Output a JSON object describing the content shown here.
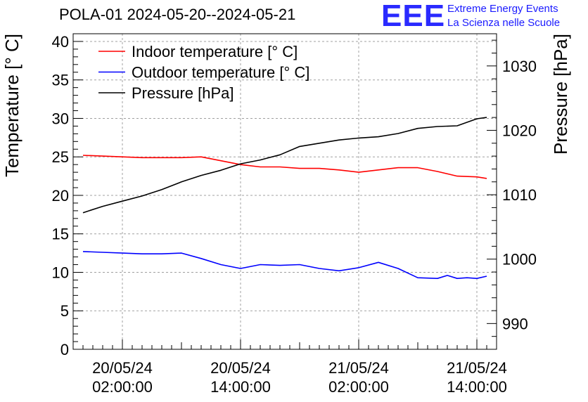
{
  "header": {
    "title": "POLA-01 2024-05-20--2024-05-21",
    "logo_letters": "EEE",
    "logo_line1": "Extreme Energy Events",
    "logo_line2": "La Scienza nelle Scuole"
  },
  "colors": {
    "indoor": "#ff0000",
    "outdoor": "#0000ff",
    "pressure": "#000000",
    "grid": "#a0a0a0"
  },
  "chart_data": {
    "type": "line",
    "ylabel": "Temperature [° C]",
    "y2label": "Pressure [hPa]",
    "ylim": [
      0,
      41
    ],
    "y2lim": [
      986,
      1035
    ],
    "y_ticks": [
      "0",
      "5",
      "10",
      "15",
      "20",
      "25",
      "30",
      "35",
      "40"
    ],
    "y2_ticks": [
      "990",
      "1000",
      "1010",
      "1020",
      "1030"
    ],
    "xlim": [
      "2024-05-19 21:00",
      "2024-05-21 16:00"
    ],
    "x_ticks": [
      {
        "date": "20/05/24",
        "time": "02:00:00",
        "at": "2024-05-20 02:00"
      },
      {
        "date": "20/05/24",
        "time": "14:00:00",
        "at": "2024-05-20 14:00"
      },
      {
        "date": "21/05/24",
        "time": "02:00:00",
        "at": "2024-05-21 02:00"
      },
      {
        "date": "21/05/24",
        "time": "14:00:00",
        "at": "2024-05-21 14:00"
      }
    ],
    "grid": true,
    "legend_position": "top-left",
    "series": [
      {
        "name": "Indoor temperature [° C]",
        "axis": "left",
        "color": "#ff0000",
        "x": [
          "2024-05-19 22:00",
          "2024-05-20 00:00",
          "2024-05-20 02:00",
          "2024-05-20 04:00",
          "2024-05-20 06:00",
          "2024-05-20 08:00",
          "2024-05-20 10:00",
          "2024-05-20 12:00",
          "2024-05-20 14:00",
          "2024-05-20 16:00",
          "2024-05-20 18:00",
          "2024-05-20 20:00",
          "2024-05-20 22:00",
          "2024-05-21 00:00",
          "2024-05-21 02:00",
          "2024-05-21 04:00",
          "2024-05-21 06:00",
          "2024-05-21 08:00",
          "2024-05-21 10:00",
          "2024-05-21 12:00",
          "2024-05-21 14:00",
          "2024-05-21 15:00"
        ],
        "values": [
          25.2,
          25.1,
          25.0,
          24.9,
          24.9,
          24.9,
          25.0,
          24.5,
          24.0,
          23.7,
          23.7,
          23.5,
          23.5,
          23.3,
          23.0,
          23.3,
          23.6,
          23.6,
          23.1,
          22.5,
          22.4,
          22.2
        ]
      },
      {
        "name": "Outdoor temperature [° C]",
        "axis": "left",
        "color": "#0000ff",
        "x": [
          "2024-05-19 22:00",
          "2024-05-20 00:00",
          "2024-05-20 02:00",
          "2024-05-20 04:00",
          "2024-05-20 06:00",
          "2024-05-20 08:00",
          "2024-05-20 10:00",
          "2024-05-20 12:00",
          "2024-05-20 14:00",
          "2024-05-20 16:00",
          "2024-05-20 18:00",
          "2024-05-20 20:00",
          "2024-05-20 22:00",
          "2024-05-21 00:00",
          "2024-05-21 02:00",
          "2024-05-21 04:00",
          "2024-05-21 06:00",
          "2024-05-21 08:00",
          "2024-05-21 10:00",
          "2024-05-21 11:00",
          "2024-05-21 12:00",
          "2024-05-21 13:00",
          "2024-05-21 14:00",
          "2024-05-21 15:00"
        ],
        "values": [
          12.7,
          12.6,
          12.5,
          12.4,
          12.4,
          12.5,
          11.8,
          11.0,
          10.5,
          11.0,
          10.9,
          11.0,
          10.5,
          10.2,
          10.6,
          11.3,
          10.5,
          9.3,
          9.2,
          9.6,
          9.2,
          9.3,
          9.2,
          9.5
        ]
      },
      {
        "name": "Pressure [hPa]",
        "axis": "right",
        "color": "#000000",
        "x": [
          "2024-05-19 22:00",
          "2024-05-20 00:00",
          "2024-05-20 02:00",
          "2024-05-20 04:00",
          "2024-05-20 06:00",
          "2024-05-20 08:00",
          "2024-05-20 10:00",
          "2024-05-20 12:00",
          "2024-05-20 14:00",
          "2024-05-20 16:00",
          "2024-05-20 18:00",
          "2024-05-20 20:00",
          "2024-05-20 22:00",
          "2024-05-21 00:00",
          "2024-05-21 02:00",
          "2024-05-21 04:00",
          "2024-05-21 06:00",
          "2024-05-21 08:00",
          "2024-05-21 10:00",
          "2024-05-21 12:00",
          "2024-05-21 14:00",
          "2024-05-21 15:00"
        ],
        "values": [
          1007.2,
          1008.2,
          1009.0,
          1009.8,
          1010.8,
          1012.0,
          1013.0,
          1013.8,
          1014.8,
          1015.4,
          1016.2,
          1017.5,
          1018.0,
          1018.5,
          1018.8,
          1019.0,
          1019.5,
          1020.3,
          1020.6,
          1020.7,
          1021.8,
          1022.0
        ]
      }
    ]
  }
}
